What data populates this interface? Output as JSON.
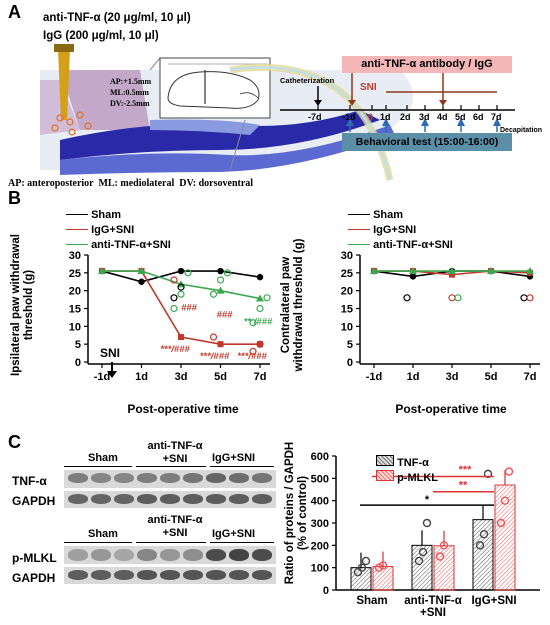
{
  "panelA": {
    "label": "A",
    "treatment1": "anti-TNF-α (20 μg/ml, 10 μl)",
    "treatment2": "IgG (200 μg/ml, 10 μl)",
    "coords": [
      "AP:+1.5mm",
      "ML:0.5mm",
      "DV:-2.5mm"
    ],
    "footnote": "AP: anteroposterior  ML: mediolateral  DV: dorsoventral",
    "timeline": {
      "antibody_label": "anti-TNF-α antibody / IgG",
      "catheterization": "Catheterization",
      "sni": "SNI",
      "days": [
        "-7d",
        "-1d",
        "0",
        "1d",
        "2d",
        "3d",
        "4d",
        "5d",
        "6d",
        "7d"
      ],
      "decapitation": "Decapitation",
      "behavior_label": "Behavioral test (15:00-16:00)"
    }
  },
  "panelB": {
    "label": "B",
    "legend": [
      "Sham",
      "IgG+SNI",
      "anti-TNF-α+SNI"
    ],
    "sni_marker": "SNI",
    "colors": {
      "sham": "#000000",
      "igg": "#c0392b",
      "anti": "#3aa84f"
    },
    "left_stats": [
      {
        "text": "###",
        "color": "#c0392b"
      },
      {
        "text": "###",
        "color": "#c0392b"
      },
      {
        "text": "** /###",
        "color": "#3aa84f"
      },
      {
        "text": "***/###",
        "color": "#c0392b"
      },
      {
        "text": "***/###",
        "color": "#c0392b"
      },
      {
        "text": "***/###",
        "color": "#c0392b"
      }
    ]
  },
  "chart_data": [
    {
      "type": "line",
      "ylabel": "Ipsilateral paw withdrawal threshold (g)",
      "xlabel": "Post-operative time",
      "categories": [
        "-1d",
        "1d",
        "3d",
        "5d",
        "7d"
      ],
      "ylim": [
        0,
        30
      ],
      "yticks": [
        0,
        5,
        10,
        15,
        20,
        25,
        30
      ],
      "series": [
        {
          "name": "Sham",
          "values": [
            25.5,
            22.5,
            25.5,
            25.5,
            23.8
          ]
        },
        {
          "name": "IgG+SNI",
          "values": [
            25.5,
            25.5,
            7.0,
            5.0,
            5.0
          ]
        },
        {
          "name": "anti-TNF-α+SNI",
          "values": [
            25.5,
            25.5,
            21.8,
            20.0,
            17.8
          ]
        }
      ]
    },
    {
      "type": "line",
      "ylabel": "Contralateral paw withdrawal threshold (g)",
      "xlabel": "Post-operative time",
      "categories": [
        "-1d",
        "1d",
        "3d",
        "5d",
        "7d"
      ],
      "ylim": [
        0,
        30
      ],
      "yticks": [
        0,
        5,
        10,
        15,
        20,
        25,
        30
      ],
      "series": [
        {
          "name": "Sham",
          "values": [
            25.5,
            24.0,
            25.5,
            25.5,
            24.0
          ]
        },
        {
          "name": "IgG+SNI",
          "values": [
            25.5,
            25.5,
            24.5,
            25.5,
            25.0
          ]
        },
        {
          "name": "anti-TNF-α+SNI",
          "values": [
            25.5,
            25.5,
            25.5,
            25.5,
            25.5
          ]
        }
      ]
    },
    {
      "type": "bar",
      "ylabel": "Ratio of proteins / GAPDH (% of control)",
      "categories": [
        "Sham",
        "anti-TNF-α +SNI",
        "IgG+SNI"
      ],
      "ylim": [
        0,
        600
      ],
      "yticks": [
        0,
        100,
        200,
        300,
        400,
        500,
        600
      ],
      "series": [
        {
          "name": "TNF-α",
          "values": [
            100,
            200,
            315
          ]
        },
        {
          "name": "p-MLKL",
          "values": [
            105,
            198,
            470
          ]
        }
      ],
      "significance": [
        "***",
        "**",
        "*"
      ]
    }
  ],
  "panelC": {
    "label": "C",
    "blot_groups": [
      "Sham",
      "anti-TNF-α +SNI",
      "IgG+SNI"
    ],
    "blot_rows_top": [
      "TNF-α",
      "GAPDH"
    ],
    "blot_rows_bottom": [
      "p-MLKL",
      "GAPDH"
    ]
  }
}
